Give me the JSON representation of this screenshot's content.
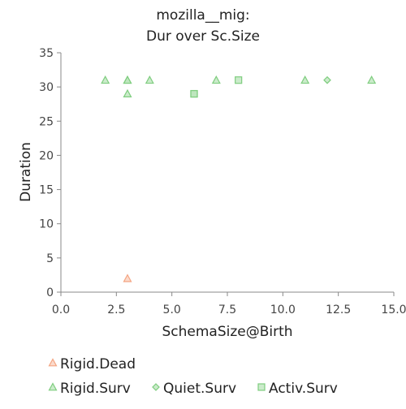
{
  "chart_data": {
    "type": "scatter",
    "title_line1": "mozilla__mig:",
    "title_line2": "Dur over Sc.Size",
    "xlabel": "SchemaSize@Birth",
    "ylabel": "Duration",
    "xlim": [
      0,
      15
    ],
    "ylim": [
      0,
      35
    ],
    "x_ticks": [
      0,
      2.5,
      5,
      7.5,
      10,
      12.5,
      15
    ],
    "x_tick_labels": [
      "0.0",
      "2.5",
      "5.0",
      "7.5",
      "10.0",
      "12.5",
      "15.0"
    ],
    "y_ticks": [
      0,
      5,
      10,
      15,
      20,
      25,
      30,
      35
    ],
    "y_tick_labels": [
      "0",
      "5",
      "10",
      "15",
      "20",
      "25",
      "30",
      "35"
    ],
    "grid": false,
    "legend_position": "bottom",
    "series": [
      {
        "name": "Rigid.Dead",
        "marker": "triangle",
        "color": "#f4a582",
        "points": [
          [
            3,
            2
          ]
        ]
      },
      {
        "name": "Rigid.Surv",
        "marker": "triangle",
        "color": "#7fcd7f",
        "points": [
          [
            2,
            31
          ],
          [
            3,
            31
          ],
          [
            3,
            31
          ],
          [
            3,
            29
          ],
          [
            4,
            31
          ],
          [
            7,
            31
          ],
          [
            11,
            31
          ],
          [
            14,
            31
          ]
        ]
      },
      {
        "name": "Quiet.Surv",
        "marker": "diamond",
        "color": "#7fcd7f",
        "points": [
          [
            12,
            31
          ]
        ]
      },
      {
        "name": "Activ.Surv",
        "marker": "square",
        "color": "#7fcd7f",
        "points": [
          [
            6,
            29
          ],
          [
            6,
            29
          ],
          [
            8,
            31
          ]
        ]
      }
    ]
  }
}
